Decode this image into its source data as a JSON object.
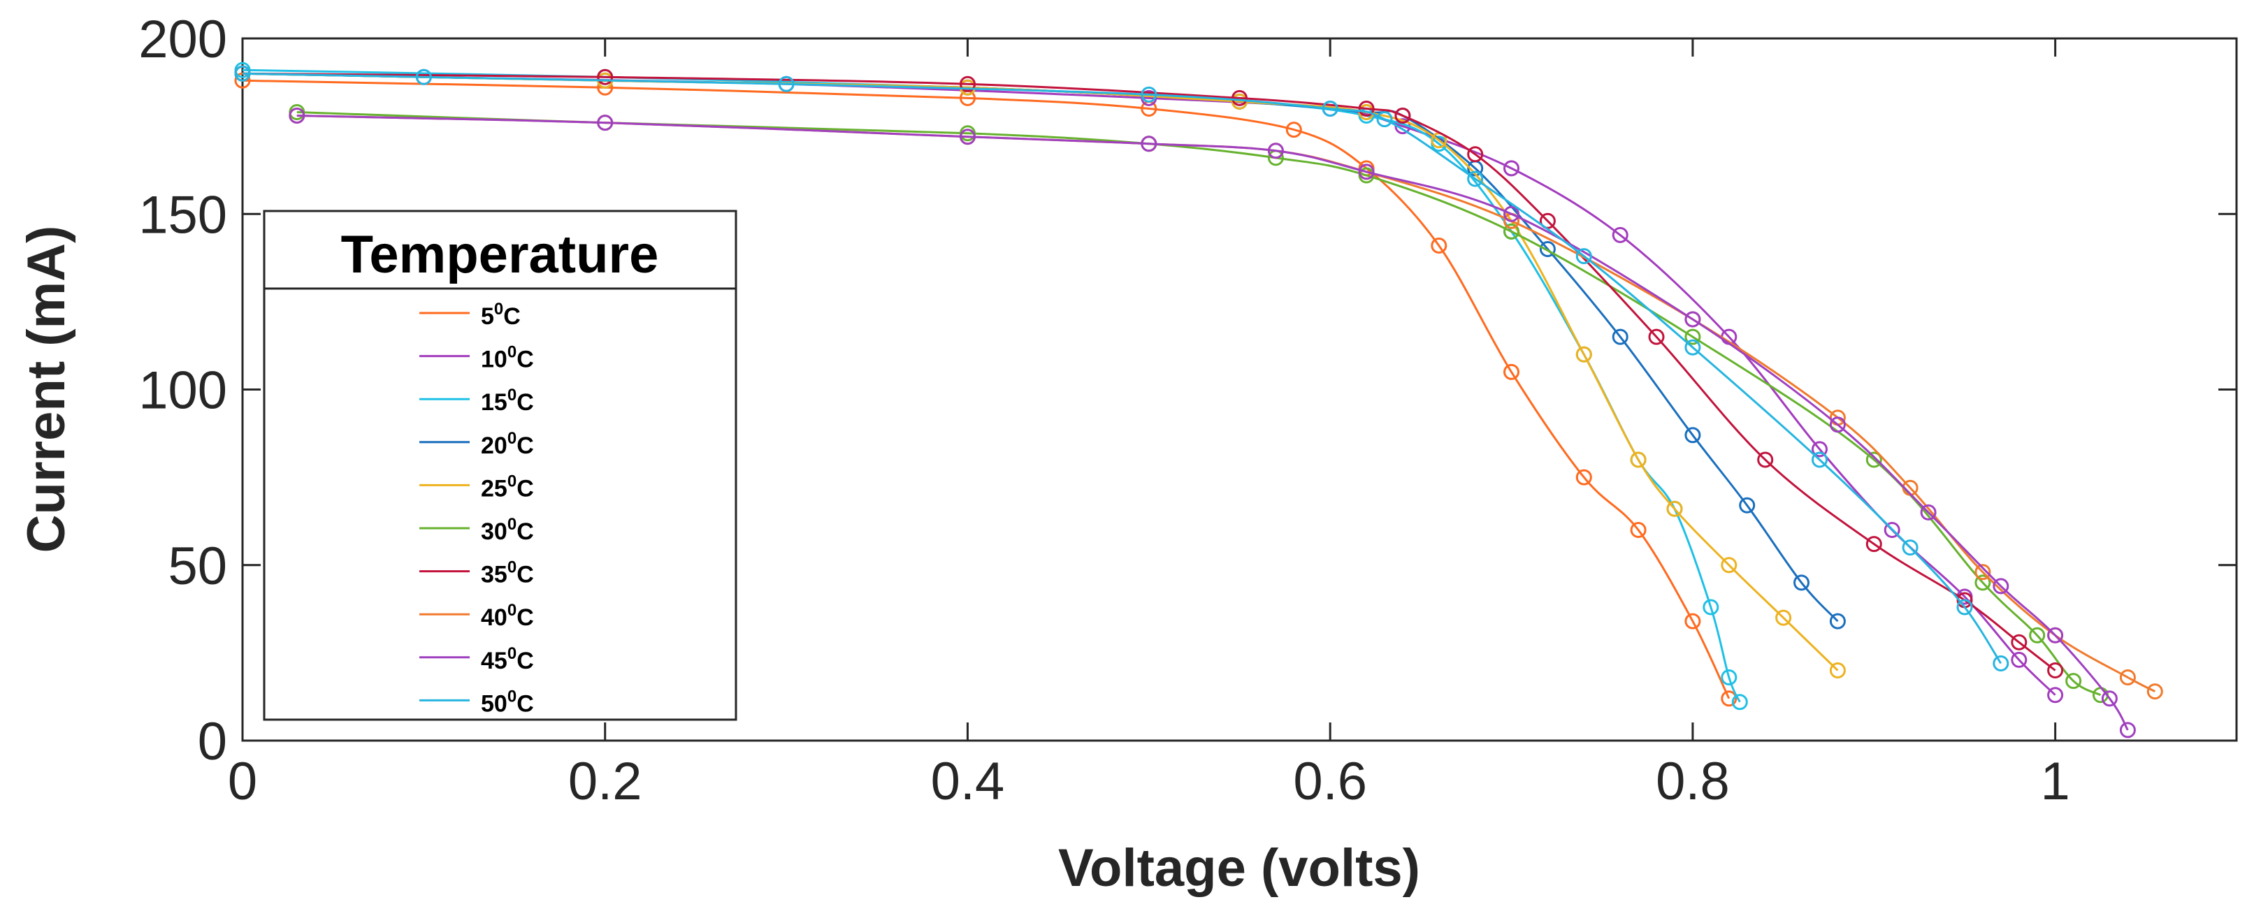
{
  "chart_data": {
    "type": "line",
    "title": "",
    "xlabel": "Voltage (volts)",
    "ylabel": "Current (mA)",
    "xlim": [
      0,
      1.1
    ],
    "ylim": [
      0,
      200
    ],
    "xticks": [
      0,
      0.2,
      0.4,
      0.6,
      0.8,
      1
    ],
    "xtick_labels": [
      "0",
      "0.2",
      "0.4",
      "0.6",
      "0.8",
      "1"
    ],
    "yticks": [
      0,
      50,
      100,
      150,
      200
    ],
    "ytick_labels": [
      "0",
      "50",
      "100",
      "150",
      "200"
    ],
    "grid": false,
    "legend": {
      "title": "Temperature",
      "placement": "left"
    },
    "series": [
      {
        "name": "5",
        "unit": "C",
        "color": "#FF6A1F",
        "x": [
          0,
          0.2,
          0.4,
          0.5,
          0.58,
          0.62,
          0.66,
          0.7,
          0.74,
          0.77,
          0.8,
          0.82
        ],
        "y": [
          188,
          186,
          183,
          180,
          174,
          163,
          141,
          105,
          75,
          60,
          34,
          12
        ]
      },
      {
        "name": "10",
        "unit": "C",
        "color": "#A33CBE",
        "x": [
          0,
          0.1,
          0.3,
          0.5,
          0.6,
          0.64,
          0.7,
          0.76,
          0.82,
          0.87,
          0.91,
          0.95,
          0.98,
          1.0
        ],
        "y": [
          190,
          189,
          187,
          183,
          180,
          175,
          163,
          144,
          115,
          83,
          60,
          41,
          23,
          13
        ]
      },
      {
        "name": "15",
        "unit": "C",
        "color": "#1FC0E6",
        "x": [
          0,
          0.2,
          0.4,
          0.55,
          0.62,
          0.66,
          0.7,
          0.74,
          0.77,
          0.79,
          0.81,
          0.82,
          0.826
        ],
        "y": [
          191,
          189,
          186,
          182,
          178,
          170,
          145,
          110,
          80,
          66,
          38,
          18,
          11
        ]
      },
      {
        "name": "20",
        "unit": "C",
        "color": "#1A6FBE",
        "x": [
          0,
          0.2,
          0.4,
          0.55,
          0.62,
          0.64,
          0.68,
          0.72,
          0.76,
          0.8,
          0.83,
          0.86,
          0.88
        ],
        "y": [
          190,
          188,
          186,
          182,
          179,
          178,
          163,
          140,
          115,
          87,
          67,
          45,
          34
        ]
      },
      {
        "name": "25",
        "unit": "C",
        "color": "#EDB21F",
        "x": [
          0,
          0.2,
          0.4,
          0.55,
          0.62,
          0.66,
          0.7,
          0.74,
          0.77,
          0.79,
          0.82,
          0.85,
          0.88
        ],
        "y": [
          190,
          188,
          186,
          182,
          179,
          171,
          148,
          110,
          80,
          66,
          50,
          35,
          20
        ]
      },
      {
        "name": "30",
        "unit": "C",
        "color": "#66B22E",
        "x": [
          0.03,
          0.2,
          0.4,
          0.5,
          0.57,
          0.62,
          0.7,
          0.8,
          0.9,
          0.96,
          0.99,
          1.01,
          1.025
        ],
        "y": [
          179,
          176,
          173,
          170,
          166,
          161,
          145,
          115,
          80,
          45,
          30,
          17,
          13
        ]
      },
      {
        "name": "35",
        "unit": "C",
        "color": "#C2133C",
        "x": [
          0,
          0.2,
          0.4,
          0.55,
          0.62,
          0.64,
          0.68,
          0.72,
          0.78,
          0.84,
          0.9,
          0.95,
          0.98,
          1.0
        ],
        "y": [
          190,
          189,
          187,
          183,
          180,
          178,
          167,
          148,
          115,
          80,
          56,
          40,
          28,
          20
        ]
      },
      {
        "name": "40",
        "unit": "C",
        "color": "#F07A2C",
        "x": [
          0.03,
          0.2,
          0.4,
          0.5,
          0.57,
          0.62,
          0.7,
          0.8,
          0.88,
          0.92,
          0.96,
          1.0,
          1.04,
          1.055
        ],
        "y": [
          178,
          176,
          172,
          170,
          168,
          162,
          148,
          120,
          92,
          72,
          48,
          30,
          18,
          14
        ]
      },
      {
        "name": "45",
        "unit": "C",
        "color": "#A040C0",
        "x": [
          0.03,
          0.2,
          0.4,
          0.5,
          0.57,
          0.62,
          0.7,
          0.8,
          0.88,
          0.93,
          0.97,
          1.0,
          1.03,
          1.04
        ],
        "y": [
          178,
          176,
          172,
          170,
          168,
          162,
          150,
          120,
          90,
          65,
          44,
          30,
          12,
          3
        ]
      },
      {
        "name": "50",
        "unit": "C",
        "color": "#26B5E0",
        "x": [
          0,
          0.1,
          0.3,
          0.5,
          0.6,
          0.63,
          0.68,
          0.74,
          0.8,
          0.87,
          0.92,
          0.95,
          0.97
        ],
        "y": [
          190,
          189,
          187,
          184,
          180,
          177,
          160,
          138,
          112,
          80,
          55,
          38,
          22
        ]
      }
    ]
  }
}
